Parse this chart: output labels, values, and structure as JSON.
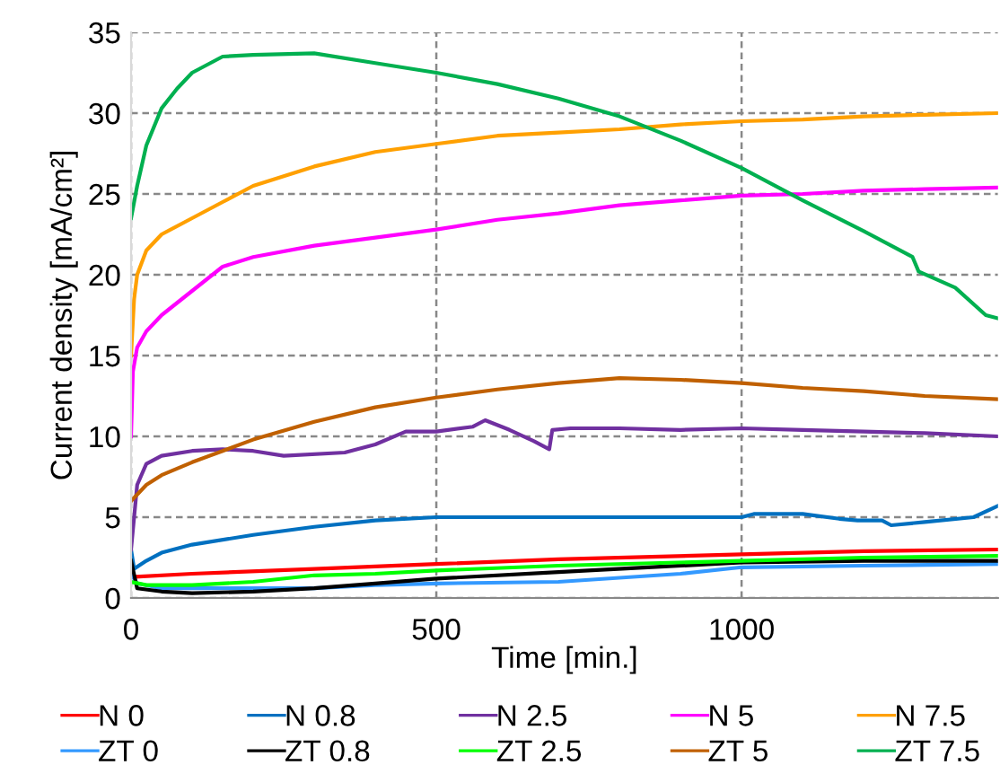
{
  "chart_data": {
    "type": "line",
    "xlabel": "Time [min.]",
    "ylabel": "Current density [mA/cm²]",
    "xlim": [
      0,
      1420
    ],
    "xticks": [
      0,
      500,
      1000
    ],
    "ylim": [
      0,
      35
    ],
    "yticks": [
      0,
      5,
      10,
      15,
      20,
      25,
      30,
      35
    ],
    "grid": true,
    "legend": "bottom",
    "line_style": "solid",
    "marker": "none",
    "series": [
      {
        "name": "N 0",
        "color": "#ff0000",
        "x": [
          0,
          100,
          300,
          500,
          700,
          1000,
          1200,
          1420
        ],
        "values": [
          1.3,
          1.5,
          1.8,
          2.1,
          2.4,
          2.7,
          2.9,
          3.0
        ]
      },
      {
        "name": "N 0.8",
        "color": "#0070c0",
        "x": [
          0,
          5,
          25,
          50,
          100,
          200,
          300,
          400,
          500,
          700,
          900,
          1000,
          1020,
          1100,
          1160,
          1190,
          1230,
          1245,
          1300,
          1380,
          1420
        ],
        "values": [
          3.0,
          1.8,
          2.3,
          2.8,
          3.3,
          3.9,
          4.4,
          4.8,
          5.0,
          5.0,
          5.0,
          5.0,
          5.2,
          5.2,
          4.9,
          4.8,
          4.8,
          4.5,
          4.7,
          5.0,
          5.7
        ]
      },
      {
        "name": "N 2.5",
        "color": "#7030a0",
        "x": [
          0,
          10,
          25,
          50,
          100,
          150,
          200,
          250,
          350,
          400,
          450,
          500,
          560,
          580,
          620,
          660,
          685,
          690,
          720,
          800,
          900,
          1000,
          1100,
          1200,
          1300,
          1420
        ],
        "values": [
          3.0,
          7.0,
          8.3,
          8.8,
          9.1,
          9.2,
          9.1,
          8.8,
          9.0,
          9.5,
          10.3,
          10.3,
          10.6,
          11.0,
          10.4,
          9.7,
          9.2,
          10.4,
          10.5,
          10.5,
          10.4,
          10.5,
          10.4,
          10.3,
          10.2,
          10.0
        ]
      },
      {
        "name": "N 5",
        "color": "#ff00ff",
        "x": [
          0,
          3,
          10,
          25,
          50,
          100,
          150,
          200,
          300,
          400,
          500,
          600,
          700,
          800,
          900,
          1000,
          1100,
          1200,
          1300,
          1420
        ],
        "values": [
          10.0,
          14.0,
          15.5,
          16.5,
          17.5,
          19.0,
          20.5,
          21.1,
          21.8,
          22.3,
          22.8,
          23.4,
          23.8,
          24.3,
          24.6,
          24.9,
          25.0,
          25.2,
          25.3,
          25.4
        ]
      },
      {
        "name": "N 7.5",
        "color": "#ffa000",
        "x": [
          0,
          5,
          10,
          25,
          50,
          100,
          150,
          200,
          300,
          400,
          500,
          600,
          700,
          800,
          900,
          1000,
          1100,
          1200,
          1300,
          1420
        ],
        "values": [
          15.0,
          18.5,
          20.0,
          21.5,
          22.5,
          23.5,
          24.5,
          25.5,
          26.7,
          27.6,
          28.1,
          28.6,
          28.8,
          29.0,
          29.3,
          29.5,
          29.6,
          29.8,
          29.9,
          30.0
        ]
      },
      {
        "name": "ZT 0",
        "color": "#3399ff",
        "x": [
          0,
          10,
          50,
          200,
          300,
          400,
          500,
          700,
          900,
          1000,
          1200,
          1420
        ],
        "values": [
          1.5,
          0.9,
          0.6,
          0.6,
          0.6,
          0.8,
          0.9,
          1.0,
          1.5,
          1.9,
          2.0,
          2.1
        ]
      },
      {
        "name": "ZT 0.8",
        "color": "#000000",
        "x": [
          0,
          10,
          50,
          100,
          200,
          300,
          400,
          500,
          700,
          1000,
          1200,
          1420
        ],
        "values": [
          2.3,
          0.6,
          0.4,
          0.3,
          0.4,
          0.6,
          0.9,
          1.2,
          1.6,
          2.2,
          2.3,
          2.3
        ]
      },
      {
        "name": "ZT 2.5",
        "color": "#00ff00",
        "x": [
          0,
          25,
          100,
          200,
          300,
          400,
          500,
          700,
          1000,
          1200,
          1420
        ],
        "values": [
          1.0,
          0.8,
          0.8,
          1.0,
          1.4,
          1.5,
          1.7,
          2.0,
          2.3,
          2.5,
          2.6
        ]
      },
      {
        "name": "ZT 5",
        "color": "#c06000",
        "x": [
          0,
          25,
          50,
          100,
          150,
          200,
          300,
          400,
          500,
          600,
          700,
          800,
          900,
          1000,
          1100,
          1200,
          1300,
          1420
        ],
        "values": [
          6.0,
          7.0,
          7.6,
          8.4,
          9.1,
          9.8,
          10.9,
          11.8,
          12.4,
          12.9,
          13.3,
          13.6,
          13.5,
          13.3,
          13.0,
          12.8,
          12.5,
          12.3
        ]
      },
      {
        "name": "ZT 7.5",
        "color": "#00b050",
        "x": [
          0,
          10,
          25,
          50,
          75,
          100,
          150,
          200,
          300,
          400,
          500,
          600,
          700,
          800,
          900,
          1000,
          1100,
          1200,
          1280,
          1290,
          1350,
          1400,
          1420
        ],
        "values": [
          23.5,
          25.5,
          28.0,
          30.3,
          31.5,
          32.5,
          33.5,
          33.6,
          33.7,
          33.1,
          32.5,
          31.8,
          30.9,
          29.8,
          28.3,
          26.6,
          24.6,
          22.7,
          21.1,
          20.2,
          19.2,
          17.5,
          17.3
        ]
      }
    ]
  }
}
